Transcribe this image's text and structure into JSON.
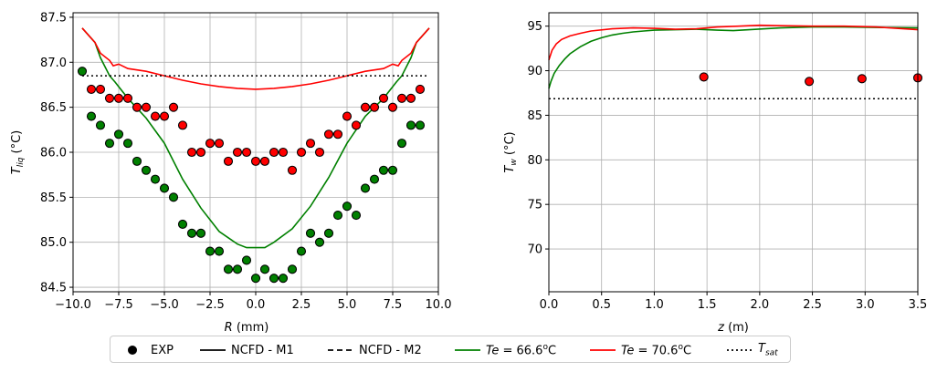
{
  "chart_data": [
    {
      "type": "line",
      "xlabel": "R (mm)",
      "ylabel": "T_liq (°C)",
      "xlim": [
        -10,
        10
      ],
      "ylim": [
        84.45,
        87.55
      ],
      "xticks": [
        "−10.0",
        "−7.5",
        "−5.0",
        "−2.5",
        "0.0",
        "2.5",
        "5.0",
        "7.5",
        "10.0"
      ],
      "xtick_values": [
        -10,
        -7.5,
        -5,
        -2.5,
        0,
        2.5,
        5,
        7.5,
        10
      ],
      "yticks": [
        "84.5",
        "85.0",
        "85.5",
        "86.0",
        "86.5",
        "87.0",
        "87.5"
      ],
      "ytick_values": [
        84.5,
        85.0,
        85.5,
        86.0,
        86.5,
        87.0,
        87.5
      ],
      "grid": true,
      "series": [
        {
          "name": "Te = 66.6°C",
          "kind": "line",
          "color": "#008000",
          "x": [
            -9.5,
            -8.8,
            -8.5,
            -8,
            -7.7,
            -7,
            -6,
            -5,
            -4,
            -3,
            -2,
            -1,
            -0.5,
            0,
            0.5,
            1,
            2,
            3,
            4,
            5,
            6,
            7,
            7.7,
            8,
            8.5,
            8.8,
            9.5
          ],
          "y": [
            87.38,
            87.22,
            87.05,
            86.85,
            86.78,
            86.6,
            86.38,
            86.1,
            85.7,
            85.38,
            85.12,
            84.98,
            84.94,
            84.94,
            84.94,
            85.0,
            85.15,
            85.4,
            85.72,
            86.1,
            86.4,
            86.6,
            86.78,
            86.85,
            87.05,
            87.22,
            87.38
          ]
        },
        {
          "name": "Te = 70.6°C",
          "kind": "line",
          "color": "#ff0000",
          "x": [
            -9.5,
            -8.8,
            -8.5,
            -8,
            -7.8,
            -7.5,
            -7,
            -6,
            -5,
            -4,
            -3,
            -2,
            -1,
            0,
            1,
            2,
            3,
            4,
            5,
            6,
            7,
            7.5,
            7.8,
            8,
            8.5,
            8.8,
            9.5
          ],
          "y": [
            87.38,
            87.22,
            87.1,
            87.02,
            86.96,
            86.98,
            86.93,
            86.9,
            86.85,
            86.8,
            86.76,
            86.73,
            86.71,
            86.7,
            86.71,
            86.73,
            86.76,
            86.8,
            86.85,
            86.9,
            86.93,
            86.98,
            86.96,
            87.02,
            87.1,
            87.22,
            87.38
          ]
        },
        {
          "name": "T_sat",
          "kind": "dotted",
          "color": "#000000",
          "x": [
            -9.5,
            9.5
          ],
          "y": [
            86.85,
            86.85
          ]
        },
        {
          "name": "EXP (Te = 66.6°C)",
          "kind": "scatter",
          "color": "#008000",
          "x": [
            -9.5,
            -9.0,
            -8.5,
            -8.0,
            -7.5,
            -7.0,
            -6.5,
            -6.0,
            -5.5,
            -5.0,
            -4.5,
            -4.0,
            -3.5,
            -3.0,
            -2.5,
            -2.0,
            -1.5,
            -1.0,
            -0.5,
            0.0,
            0.5,
            1.0,
            1.5,
            2.0,
            2.5,
            3.0,
            3.5,
            4.0,
            4.5,
            5.0,
            5.5,
            6.0,
            6.5,
            7.0,
            7.5,
            8.0,
            8.5,
            9.0
          ],
          "y": [
            86.9,
            86.4,
            86.3,
            86.1,
            86.2,
            86.1,
            85.9,
            85.8,
            85.7,
            85.6,
            85.5,
            85.2,
            85.1,
            85.1,
            84.9,
            84.9,
            84.7,
            84.7,
            84.8,
            84.6,
            84.7,
            84.6,
            84.6,
            84.7,
            84.9,
            85.1,
            85.0,
            85.1,
            85.3,
            85.4,
            85.3,
            85.6,
            85.7,
            85.8,
            85.8,
            86.1,
            86.3,
            86.3
          ]
        },
        {
          "name": "EXP (Te = 70.6°C)",
          "kind": "scatter",
          "color": "#ff0000",
          "x": [
            -9.0,
            -8.5,
            -8.0,
            -7.5,
            -7.0,
            -6.5,
            -6.0,
            -5.5,
            -5.0,
            -4.5,
            -4.0,
            -3.5,
            -3.0,
            -2.5,
            -2.0,
            -1.5,
            -1.0,
            -0.5,
            0.0,
            0.5,
            1.0,
            1.5,
            2.0,
            2.5,
            3.0,
            3.5,
            4.0,
            4.5,
            5.0,
            5.5,
            6.0,
            6.5,
            7.0,
            7.5,
            8.0,
            8.5,
            9.0
          ],
          "y": [
            86.7,
            86.7,
            86.6,
            86.6,
            86.6,
            86.5,
            86.5,
            86.4,
            86.4,
            86.5,
            86.3,
            86.0,
            86.0,
            86.1,
            86.1,
            85.9,
            86.0,
            86.0,
            85.9,
            85.9,
            86.0,
            86.0,
            85.8,
            86.0,
            86.1,
            86.0,
            86.2,
            86.2,
            86.4,
            86.3,
            86.5,
            86.5,
            86.6,
            86.5,
            86.6,
            86.6,
            86.7
          ]
        }
      ]
    },
    {
      "type": "line",
      "xlabel": "z (m)",
      "ylabel": "T_w (°C)",
      "xlim": [
        0,
        3.5
      ],
      "ylim": [
        65.2,
        96.5
      ],
      "xticks": [
        "0.0",
        "0.5",
        "1.0",
        "1.5",
        "2.0",
        "2.5",
        "3.0",
        "3.5"
      ],
      "xtick_values": [
        0,
        0.5,
        1.0,
        1.5,
        2.0,
        2.5,
        3.0,
        3.5
      ],
      "yticks": [
        "70",
        "75",
        "80",
        "85",
        "90",
        "95"
      ],
      "ytick_values": [
        70,
        75,
        80,
        85,
        90,
        95
      ],
      "grid": true,
      "series": [
        {
          "name": "Te = 66.6°C",
          "kind": "line",
          "color": "#008000",
          "x": [
            0,
            0.02,
            0.05,
            0.1,
            0.15,
            0.2,
            0.3,
            0.4,
            0.5,
            0.6,
            0.7,
            0.8,
            0.9,
            1.0,
            1.2,
            1.4,
            1.6,
            1.75,
            1.9,
            2.2,
            2.5,
            2.8,
            3.1,
            3.5
          ],
          "y": [
            88.0,
            88.8,
            89.7,
            90.6,
            91.3,
            91.9,
            92.7,
            93.3,
            93.7,
            94.0,
            94.2,
            94.35,
            94.45,
            94.55,
            94.6,
            94.65,
            94.55,
            94.5,
            94.6,
            94.8,
            94.9,
            94.9,
            94.85,
            94.8
          ]
        },
        {
          "name": "Te = 70.6°C",
          "kind": "line",
          "color": "#ff0000",
          "x": [
            0,
            0.03,
            0.07,
            0.12,
            0.2,
            0.3,
            0.4,
            0.6,
            0.8,
            1.0,
            1.2,
            1.4,
            1.6,
            1.8,
            2.0,
            2.2,
            2.5,
            2.8,
            3.1,
            3.5
          ],
          "y": [
            91.2,
            92.3,
            93.0,
            93.5,
            93.9,
            94.2,
            94.45,
            94.7,
            94.8,
            94.75,
            94.65,
            94.7,
            94.9,
            95.0,
            95.1,
            95.05,
            95.0,
            95.0,
            94.9,
            94.6
          ]
        },
        {
          "name": "T_sat",
          "kind": "dotted",
          "color": "#000000",
          "x": [
            0,
            3.5
          ],
          "y": [
            86.85,
            86.85
          ]
        },
        {
          "name": "EXP",
          "kind": "scatter",
          "color": "#ff0000",
          "x": [
            1.47,
            2.47,
            2.97,
            3.5
          ],
          "y": [
            89.3,
            88.8,
            89.1,
            89.2
          ]
        }
      ]
    }
  ],
  "legend": {
    "entries": [
      {
        "label": "EXP",
        "marker": "dot",
        "color": "#000000"
      },
      {
        "label": "NCFD - M1",
        "marker": "solid",
        "color": "#000000"
      },
      {
        "label": "NCFD - M2",
        "marker": "dashed",
        "color": "#000000"
      },
      {
        "label": "Te = 66.6°C",
        "marker": "solid",
        "color": "#008000"
      },
      {
        "label": "Te = 70.6°C",
        "marker": "solid",
        "color": "#ff0000"
      },
      {
        "label": "T_sat",
        "marker": "dotted",
        "color": "#000000"
      }
    ]
  }
}
